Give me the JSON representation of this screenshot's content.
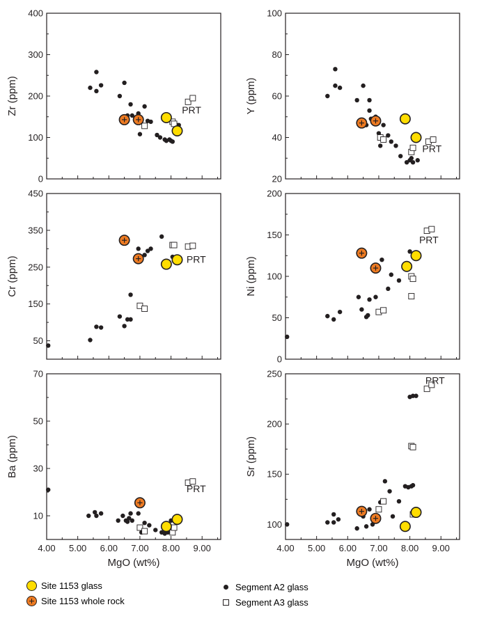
{
  "figure": {
    "x_ticks": [
      "4.00",
      "5.00",
      "6.00",
      "7.00",
      "8.00",
      "9.00"
    ],
    "colors": {
      "glass_fill": "#ffdd00",
      "rock_fill": "#ee7b22",
      "a2": "#231f20",
      "a3_fill": "#ffffff",
      "axis": "#231f20"
    }
  },
  "legend": {
    "site_glass": "Site 1153 glass",
    "site_rock": "Site 1153 whole rock",
    "a2": "Segment A2 glass",
    "a3": "Segment A3 glass"
  },
  "chart_data": [
    {
      "type": "scatter",
      "id": "zr",
      "ylabel": "Zr (ppm)",
      "xlabel": "",
      "xlim": [
        4.0,
        9.6
      ],
      "ylim": [
        0,
        400
      ],
      "yticks": [
        "0",
        "100",
        "200",
        "300",
        "400"
      ],
      "show_xticks": false,
      "annotation": {
        "text": "PRT",
        "x": 8.35,
        "y": 158
      },
      "series": [
        {
          "name": "Segment A2 glass",
          "points": [
            [
              5.4,
              220
            ],
            [
              5.6,
              258
            ],
            [
              5.6,
              212
            ],
            [
              5.75,
              226
            ],
            [
              6.35,
              200
            ],
            [
              6.5,
              232
            ],
            [
              6.6,
              153
            ],
            [
              6.7,
              180
            ],
            [
              6.75,
              153
            ],
            [
              6.95,
              158
            ],
            [
              7.0,
              108
            ],
            [
              7.15,
              175
            ],
            [
              7.25,
              140
            ],
            [
              7.35,
              138
            ],
            [
              7.55,
              106
            ],
            [
              7.65,
              100
            ],
            [
              7.8,
              95
            ],
            [
              7.85,
              92
            ],
            [
              7.95,
              95
            ],
            [
              8.0,
              92
            ],
            [
              8.05,
              90
            ],
            [
              8.15,
              132
            ],
            [
              8.25,
              130
            ]
          ]
        },
        {
          "name": "Segment A3 glass",
          "points": [
            [
              7.15,
              128
            ],
            [
              8.05,
              138
            ],
            [
              8.1,
              133
            ],
            [
              8.55,
              186
            ],
            [
              8.7,
              195
            ]
          ]
        },
        {
          "name": "Site 1153 glass",
          "points": [
            [
              7.85,
              148
            ],
            [
              8.2,
              116
            ]
          ]
        },
        {
          "name": "Site 1153 whole rock",
          "points": [
            [
              6.5,
              143
            ],
            [
              6.95,
              143
            ]
          ]
        }
      ]
    },
    {
      "type": "scatter",
      "id": "y",
      "ylabel": "Y (ppm)",
      "xlabel": "",
      "xlim": [
        4.0,
        9.6
      ],
      "ylim": [
        20,
        100
      ],
      "yticks": [
        "20",
        "40",
        "60",
        "80",
        "100"
      ],
      "show_xticks": false,
      "annotation": {
        "text": "PRT",
        "x": 8.4,
        "y": 33
      },
      "series": [
        {
          "name": "Segment A2 glass",
          "points": [
            [
              5.35,
              60
            ],
            [
              5.6,
              73
            ],
            [
              5.6,
              65
            ],
            [
              5.75,
              64
            ],
            [
              6.3,
              58
            ],
            [
              6.5,
              65
            ],
            [
              6.6,
              46
            ],
            [
              6.7,
              58
            ],
            [
              6.7,
              53
            ],
            [
              6.75,
              49
            ],
            [
              6.9,
              50
            ],
            [
              7.0,
              42
            ],
            [
              7.05,
              36
            ],
            [
              7.15,
              46
            ],
            [
              7.3,
              41
            ],
            [
              7.4,
              38
            ],
            [
              7.55,
              36
            ],
            [
              7.7,
              31
            ],
            [
              7.9,
              28
            ],
            [
              8.0,
              29
            ],
            [
              8.05,
              30
            ],
            [
              8.1,
              28
            ],
            [
              8.25,
              29
            ]
          ]
        },
        {
          "name": "Segment A3 glass",
          "points": [
            [
              7.05,
              40
            ],
            [
              7.15,
              39
            ],
            [
              8.05,
              33
            ],
            [
              8.1,
              35
            ],
            [
              8.6,
              38
            ],
            [
              8.75,
              39
            ]
          ]
        },
        {
          "name": "Site 1153 glass",
          "points": [
            [
              7.85,
              49
            ],
            [
              8.2,
              40
            ]
          ]
        },
        {
          "name": "Site 1153 whole rock",
          "points": [
            [
              6.45,
              47
            ],
            [
              6.9,
              48
            ]
          ]
        }
      ]
    },
    {
      "type": "scatter",
      "id": "cr",
      "ylabel": "Cr (ppm)",
      "xlabel": "",
      "xlim": [
        4.0,
        9.6
      ],
      "ylim": [
        0,
        450
      ],
      "yticks": [
        "50",
        "150",
        "250",
        "350",
        "450"
      ],
      "yticks_values": [
        50,
        150,
        250,
        350,
        450
      ],
      "show_xticks": false,
      "annotation": {
        "text": "PRT",
        "x": 8.5,
        "y": 262
      },
      "series": [
        {
          "name": "Segment A2 glass",
          "points": [
            [
              4.05,
              37
            ],
            [
              5.4,
              52
            ],
            [
              5.6,
              88
            ],
            [
              5.75,
              86
            ],
            [
              6.35,
              116
            ],
            [
              6.5,
              90
            ],
            [
              6.6,
              108
            ],
            [
              6.7,
              108
            ],
            [
              6.7,
              175
            ],
            [
              6.95,
              300
            ],
            [
              7.05,
              273
            ],
            [
              7.15,
              283
            ],
            [
              7.25,
              294
            ],
            [
              7.35,
              300
            ],
            [
              7.7,
              333
            ],
            [
              8.05,
              278
            ]
          ]
        },
        {
          "name": "Segment A3 glass",
          "points": [
            [
              7.0,
              145
            ],
            [
              7.15,
              137
            ],
            [
              8.05,
              310
            ],
            [
              8.1,
              310
            ],
            [
              8.55,
              306
            ],
            [
              8.7,
              308
            ]
          ]
        },
        {
          "name": "Site 1153 glass",
          "points": [
            [
              7.85,
              258
            ],
            [
              8.2,
              270
            ]
          ]
        },
        {
          "name": "Site 1153 whole rock",
          "points": [
            [
              6.5,
              323
            ],
            [
              6.95,
              273
            ]
          ]
        }
      ]
    },
    {
      "type": "scatter",
      "id": "ni",
      "ylabel": "Ni (ppm)",
      "xlabel": "",
      "xlim": [
        4.0,
        9.6
      ],
      "ylim": [
        0,
        200
      ],
      "yticks": [
        "0",
        "50",
        "100",
        "150",
        "200"
      ],
      "show_xticks": false,
      "annotation": {
        "text": "PRT",
        "x": 8.3,
        "y": 140
      },
      "series": [
        {
          "name": "Segment A2 glass",
          "points": [
            [
              4.05,
              27
            ],
            [
              5.35,
              52
            ],
            [
              5.55,
              48
            ],
            [
              5.75,
              57
            ],
            [
              6.35,
              75
            ],
            [
              6.45,
              60
            ],
            [
              6.6,
              51
            ],
            [
              6.65,
              53
            ],
            [
              6.7,
              72
            ],
            [
              6.9,
              75
            ],
            [
              7.1,
              120
            ],
            [
              7.3,
              85
            ],
            [
              7.4,
              102
            ],
            [
              7.65,
              95
            ],
            [
              8.0,
              130
            ]
          ]
        },
        {
          "name": "Segment A3 glass",
          "points": [
            [
              7.0,
              57
            ],
            [
              7.15,
              59
            ],
            [
              8.05,
              100
            ],
            [
              8.1,
              97
            ],
            [
              8.05,
              76
            ],
            [
              8.55,
              155
            ],
            [
              8.7,
              157
            ]
          ]
        },
        {
          "name": "Site 1153 glass",
          "points": [
            [
              7.9,
              112
            ],
            [
              8.2,
              125
            ]
          ]
        },
        {
          "name": "Site 1153 whole rock",
          "points": [
            [
              6.45,
              128
            ],
            [
              6.9,
              110
            ]
          ]
        }
      ]
    },
    {
      "type": "scatter",
      "id": "ba",
      "ylabel": "Ba (ppm)",
      "xlabel": "MgO (wt%)",
      "xlim": [
        4.0,
        9.6
      ],
      "ylim": [
        0,
        70
      ],
      "yticks": [
        "10",
        "30",
        "50",
        "70"
      ],
      "yticks_values": [
        10,
        30,
        50,
        70
      ],
      "show_xticks": true,
      "annotation": {
        "text": "PRT",
        "x": 8.5,
        "y": 20
      },
      "series": [
        {
          "name": "Segment A2 glass",
          "points": [
            [
              4.05,
              21
            ],
            [
              5.35,
              10
            ],
            [
              5.55,
              11.5
            ],
            [
              5.6,
              10
            ],
            [
              5.75,
              11
            ],
            [
              6.3,
              8
            ],
            [
              6.45,
              10
            ],
            [
              6.55,
              8
            ],
            [
              6.6,
              7.5
            ],
            [
              6.65,
              9
            ],
            [
              6.7,
              11
            ],
            [
              6.75,
              8
            ],
            [
              6.95,
              11
            ],
            [
              7.0,
              5
            ],
            [
              7.05,
              3
            ],
            [
              7.15,
              7
            ],
            [
              7.3,
              6
            ],
            [
              7.5,
              4
            ],
            [
              7.7,
              3
            ],
            [
              7.8,
              2.5
            ],
            [
              7.9,
              3
            ],
            [
              7.95,
              4
            ],
            [
              8.0,
              8
            ]
          ]
        },
        {
          "name": "Segment A3 glass",
          "points": [
            [
              7.0,
              5
            ],
            [
              7.15,
              3.5
            ],
            [
              8.05,
              3
            ],
            [
              8.1,
              5
            ],
            [
              8.55,
              24
            ],
            [
              8.7,
              24.5
            ]
          ]
        },
        {
          "name": "Site 1153 glass",
          "points": [
            [
              7.85,
              5.5
            ],
            [
              8.2,
              8.5
            ]
          ]
        },
        {
          "name": "Site 1153 whole rock",
          "points": [
            [
              7.0,
              15.5
            ]
          ]
        }
      ]
    },
    {
      "type": "scatter",
      "id": "sr",
      "ylabel": "Sr (ppm)",
      "xlabel": "MgO (wt%)",
      "xlim": [
        4.0,
        9.6
      ],
      "ylim": [
        85,
        250
      ],
      "yticks": [
        "100",
        "150",
        "200",
        "250"
      ],
      "yticks_values": [
        100,
        150,
        200,
        250
      ],
      "show_xticks": true,
      "annotation": {
        "text": "PRT",
        "x": 8.5,
        "y": 240
      },
      "series": [
        {
          "name": "Segment A2 glass",
          "points": [
            [
              4.05,
              100
            ],
            [
              5.35,
              102
            ],
            [
              5.55,
              102
            ],
            [
              5.55,
              110
            ],
            [
              5.7,
              105
            ],
            [
              6.3,
              96
            ],
            [
              6.5,
              108
            ],
            [
              6.6,
              98
            ],
            [
              6.7,
              115
            ],
            [
              6.8,
              100
            ],
            [
              7.0,
              115
            ],
            [
              7.05,
              122
            ],
            [
              7.2,
              143
            ],
            [
              7.35,
              133
            ],
            [
              7.45,
              108
            ],
            [
              7.65,
              123
            ],
            [
              7.85,
              138
            ],
            [
              7.95,
              137
            ],
            [
              8.05,
              138
            ],
            [
              8.1,
              139
            ],
            [
              8.0,
              227
            ],
            [
              8.1,
              228
            ],
            [
              8.2,
              228
            ]
          ]
        },
        {
          "name": "Segment A3 glass",
          "points": [
            [
              7.0,
              115
            ],
            [
              7.15,
              123
            ],
            [
              8.05,
              178
            ],
            [
              8.1,
              177
            ],
            [
              8.1,
              110
            ],
            [
              8.55,
              235
            ],
            [
              8.7,
              239
            ]
          ]
        },
        {
          "name": "Site 1153 glass",
          "points": [
            [
              7.85,
              98
            ],
            [
              8.2,
              112
            ]
          ]
        },
        {
          "name": "Site 1153 whole rock",
          "points": [
            [
              6.45,
              113
            ],
            [
              6.9,
              106
            ]
          ]
        }
      ]
    }
  ]
}
